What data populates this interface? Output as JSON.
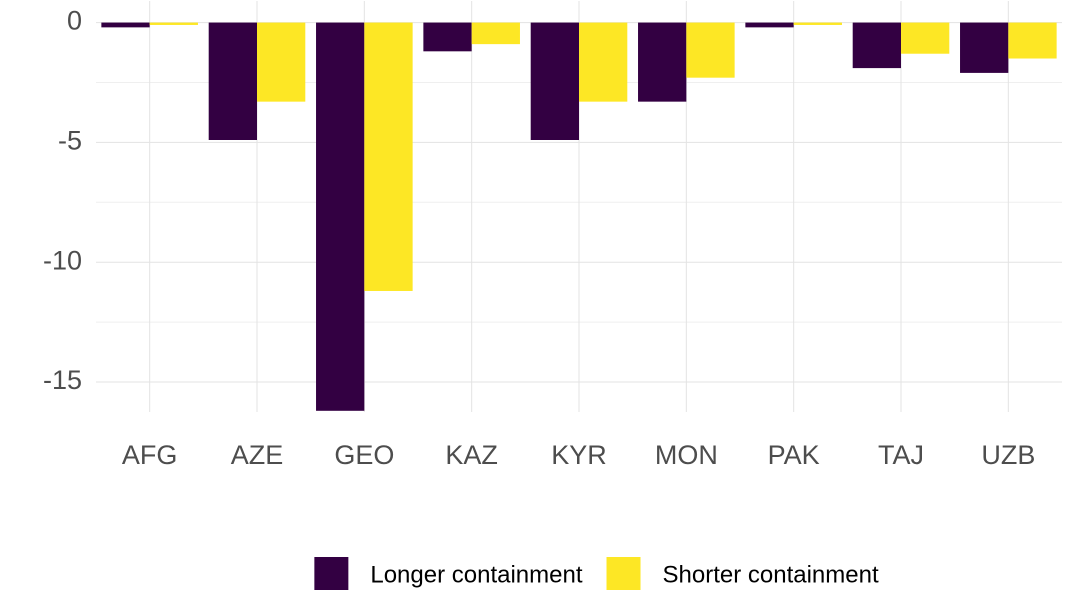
{
  "chart_data": {
    "type": "bar",
    "categories": [
      "AFG",
      "AZE",
      "GEO",
      "KAZ",
      "KYR",
      "MON",
      "PAK",
      "TAJ",
      "UZB"
    ],
    "series": [
      {
        "name": "Longer containment",
        "color": "#330042",
        "values": [
          -0.2,
          -4.9,
          -16.2,
          -1.2,
          -4.9,
          -3.3,
          -0.2,
          -1.9,
          -2.1
        ]
      },
      {
        "name": "Shorter containment",
        "color": "#fde725",
        "values": [
          -0.1,
          -3.3,
          -11.2,
          -0.9,
          -3.3,
          -2.3,
          -0.1,
          -1.3,
          -1.5
        ]
      }
    ],
    "ylim": [
      -16.25,
      0.9
    ],
    "yticks": [
      0,
      -5,
      -10,
      -15
    ],
    "grid": true,
    "legend": "bottom"
  }
}
